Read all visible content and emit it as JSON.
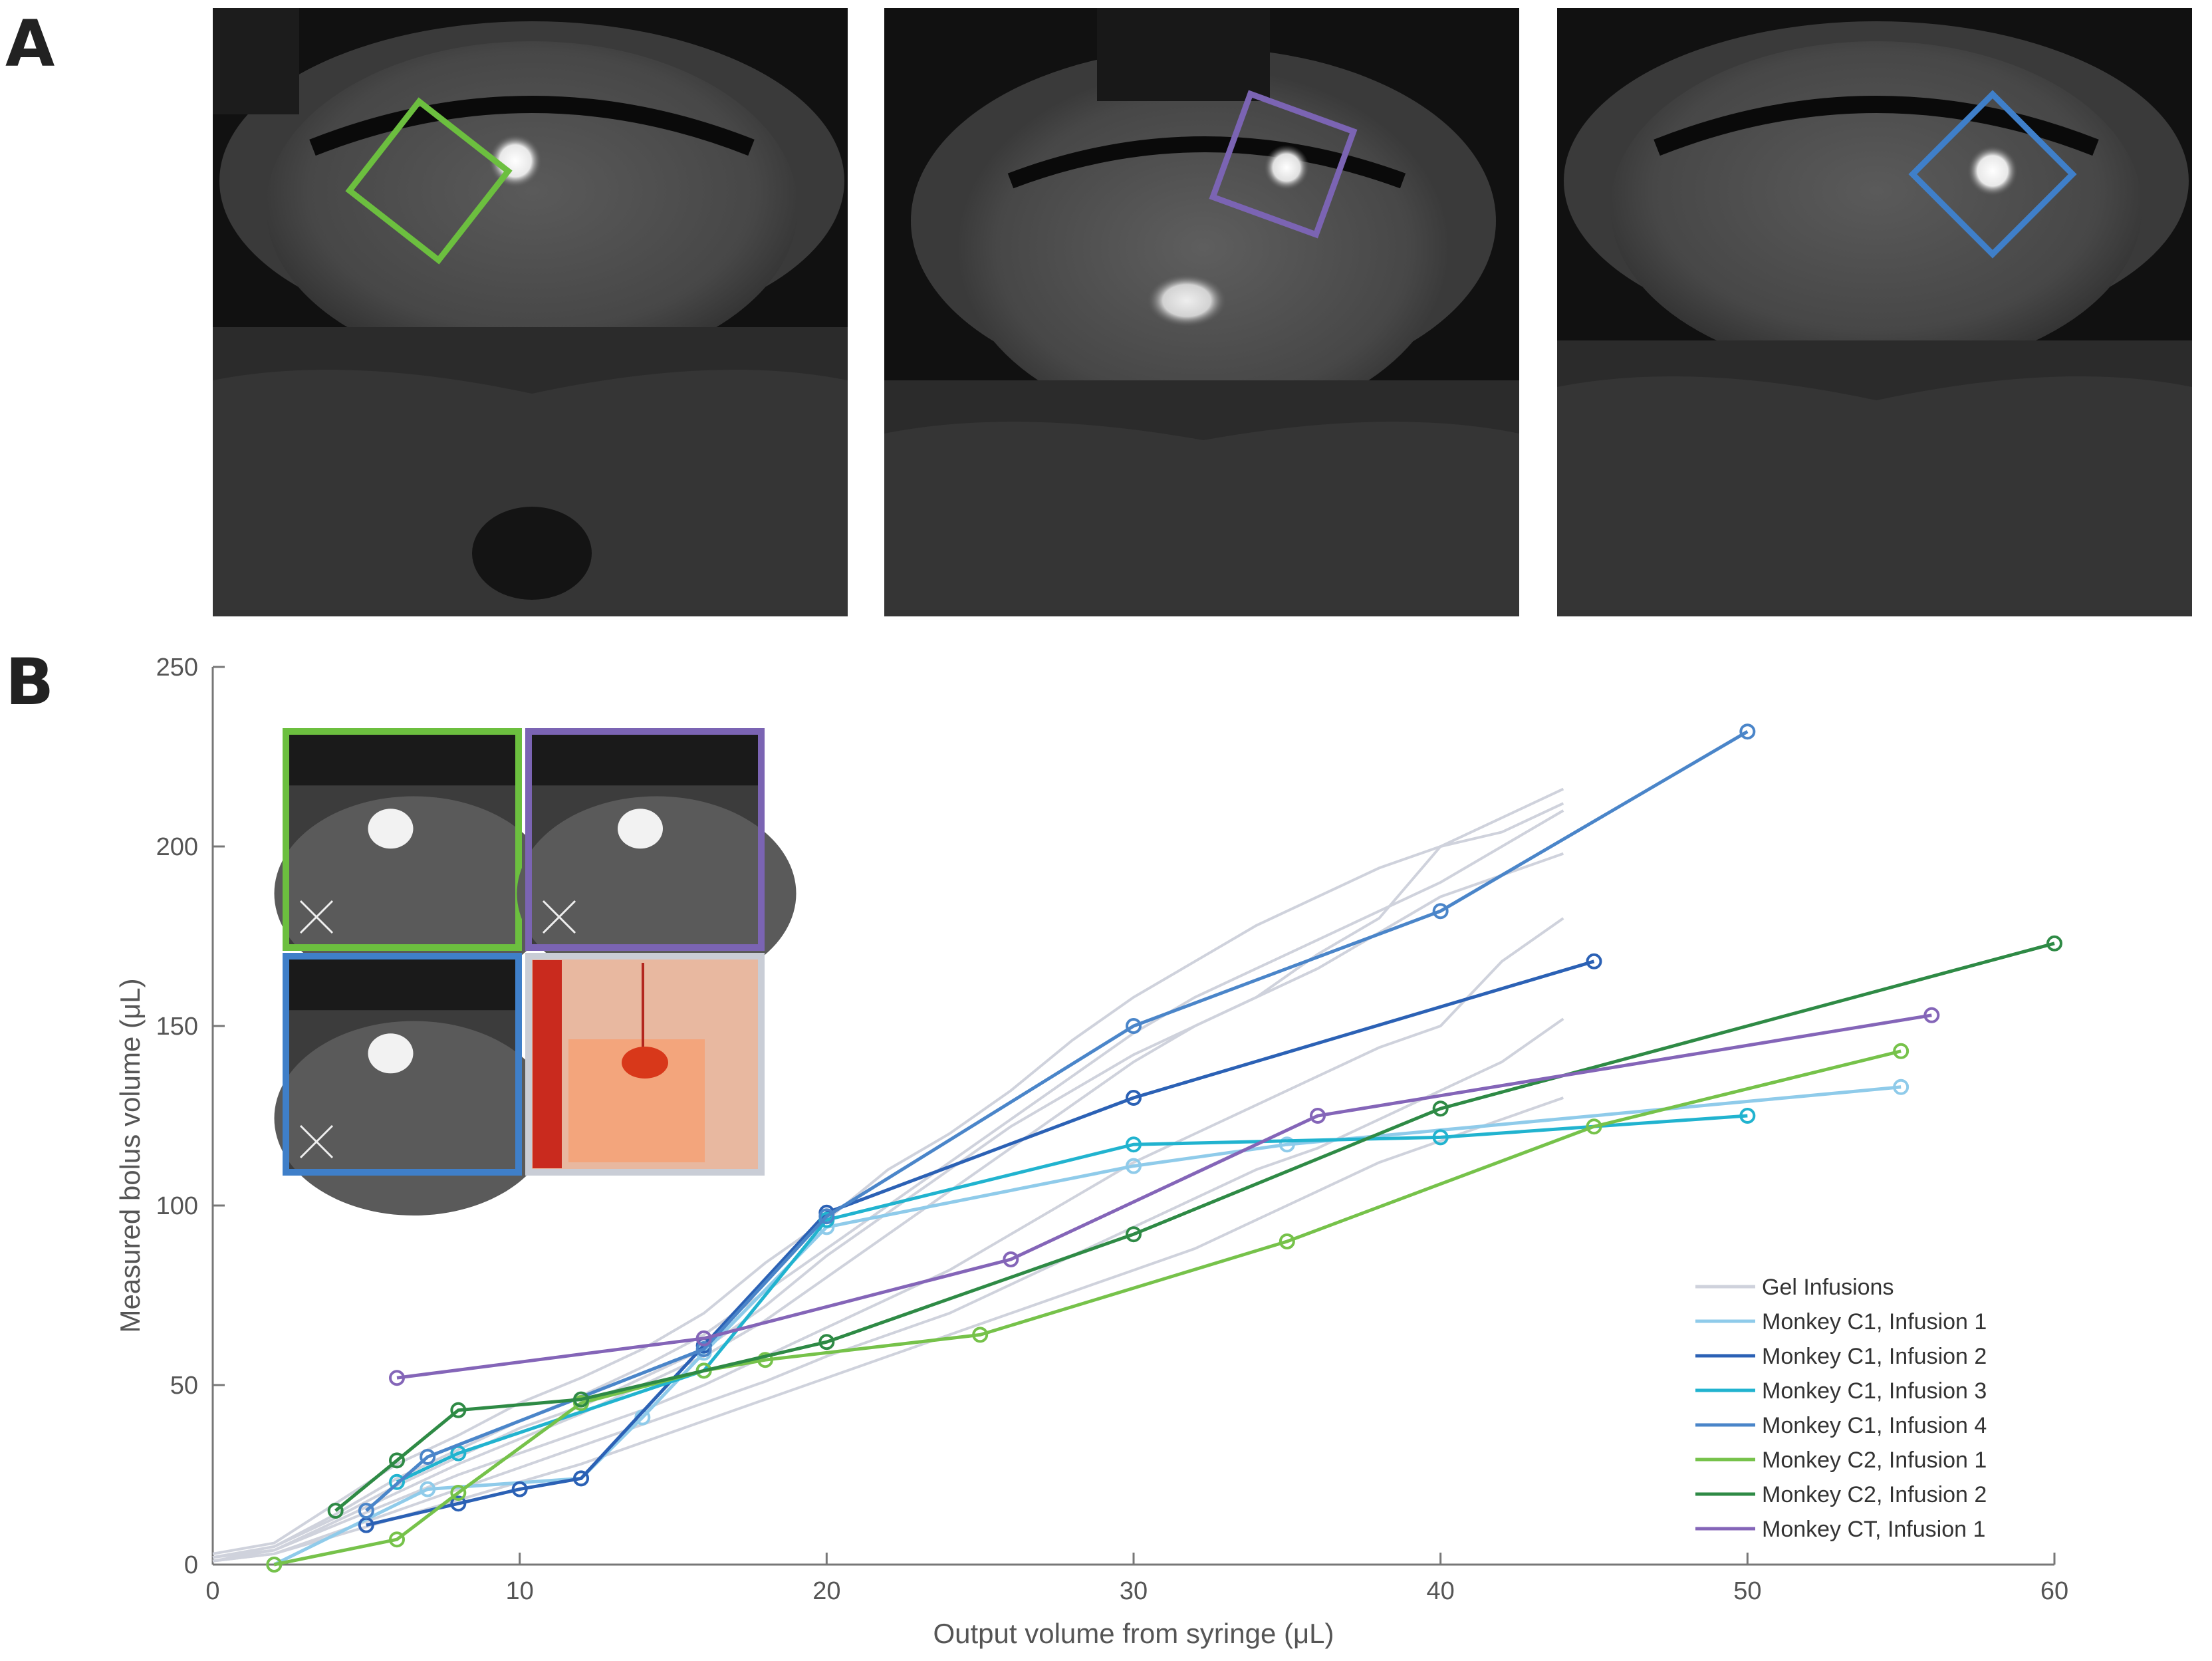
{
  "panels": {
    "a_label": "A",
    "b_label": "B"
  },
  "mri_panels": [
    {
      "box_color": "#6cbf3f"
    },
    {
      "box_color": "#7b64b3"
    },
    {
      "box_color": "#3f7fc9"
    }
  ],
  "inset_panels": [
    {
      "border_color": "#6cbf3f"
    },
    {
      "border_color": "#7b64b3"
    },
    {
      "border_color": "#3f7fc9"
    },
    {
      "border_color": "#c9cdd6"
    }
  ],
  "chart_data": {
    "type": "line",
    "xlabel": "Output volume from syringe (μL)",
    "ylabel": "Measured bolus volume (μL)",
    "xlim": [
      0,
      60
    ],
    "ylim": [
      0,
      250
    ],
    "xticks": [
      0,
      10,
      20,
      30,
      40,
      50,
      60
    ],
    "yticks": [
      0,
      50,
      100,
      150,
      200,
      250
    ],
    "grid": false,
    "legend_position": "bottom-right",
    "gel_infusions": {
      "name": "Gel Infusions",
      "color": "#cfd2dc",
      "traces": [
        [
          [
            0,
            3
          ],
          [
            2,
            6
          ],
          [
            4,
            17
          ],
          [
            6,
            28
          ],
          [
            8,
            36
          ],
          [
            10,
            45
          ],
          [
            12,
            52
          ],
          [
            14,
            60
          ],
          [
            16,
            70
          ],
          [
            18,
            84
          ],
          [
            20,
            96
          ],
          [
            22,
            110
          ],
          [
            24,
            120
          ],
          [
            26,
            132
          ],
          [
            28,
            146
          ],
          [
            30,
            158
          ],
          [
            32,
            168
          ],
          [
            34,
            178
          ],
          [
            36,
            186
          ],
          [
            38,
            194
          ],
          [
            40,
            200
          ],
          [
            42,
            208
          ],
          [
            44,
            216
          ]
        ],
        [
          [
            0,
            2
          ],
          [
            2,
            5
          ],
          [
            4,
            14
          ],
          [
            6,
            24
          ],
          [
            8,
            32
          ],
          [
            10,
            40
          ],
          [
            12,
            47
          ],
          [
            14,
            55
          ],
          [
            16,
            64
          ],
          [
            18,
            76
          ],
          [
            20,
            88
          ],
          [
            22,
            100
          ],
          [
            24,
            112
          ],
          [
            26,
            124
          ],
          [
            28,
            136
          ],
          [
            30,
            148
          ],
          [
            32,
            158
          ],
          [
            34,
            166
          ],
          [
            36,
            174
          ],
          [
            38,
            182
          ],
          [
            40,
            190
          ],
          [
            42,
            200
          ],
          [
            44,
            210
          ]
        ],
        [
          [
            0,
            1
          ],
          [
            2,
            4
          ],
          [
            4,
            12
          ],
          [
            6,
            20
          ],
          [
            8,
            28
          ],
          [
            10,
            35
          ],
          [
            12,
            42
          ],
          [
            14,
            50
          ],
          [
            16,
            58
          ],
          [
            18,
            68
          ],
          [
            20,
            80
          ],
          [
            22,
            92
          ],
          [
            24,
            104
          ],
          [
            26,
            116
          ],
          [
            28,
            128
          ],
          [
            30,
            140
          ],
          [
            32,
            150
          ],
          [
            34,
            158
          ],
          [
            36,
            166
          ],
          [
            38,
            176
          ],
          [
            40,
            186
          ],
          [
            42,
            192
          ],
          [
            44,
            198
          ]
        ],
        [
          [
            0,
            2
          ],
          [
            2,
            4
          ],
          [
            4,
            11
          ],
          [
            6,
            18
          ],
          [
            8,
            25
          ],
          [
            10,
            31
          ],
          [
            12,
            37
          ],
          [
            14,
            43
          ],
          [
            16,
            50
          ],
          [
            18,
            58
          ],
          [
            20,
            66
          ],
          [
            22,
            74
          ],
          [
            24,
            82
          ],
          [
            26,
            92
          ],
          [
            28,
            102
          ],
          [
            30,
            112
          ],
          [
            32,
            120
          ],
          [
            34,
            128
          ],
          [
            36,
            136
          ],
          [
            38,
            144
          ],
          [
            40,
            150
          ],
          [
            42,
            168
          ],
          [
            44,
            180
          ]
        ],
        [
          [
            0,
            1
          ],
          [
            2,
            3
          ],
          [
            4,
            9
          ],
          [
            6,
            15
          ],
          [
            8,
            21
          ],
          [
            10,
            27
          ],
          [
            12,
            33
          ],
          [
            14,
            39
          ],
          [
            16,
            45
          ],
          [
            18,
            51
          ],
          [
            20,
            58
          ],
          [
            22,
            64
          ],
          [
            24,
            70
          ],
          [
            26,
            78
          ],
          [
            28,
            86
          ],
          [
            30,
            94
          ],
          [
            32,
            102
          ],
          [
            34,
            110
          ],
          [
            36,
            116
          ],
          [
            38,
            124
          ],
          [
            40,
            132
          ],
          [
            42,
            140
          ],
          [
            44,
            152
          ]
        ],
        [
          [
            0,
            1
          ],
          [
            2,
            3
          ],
          [
            4,
            8
          ],
          [
            6,
            13
          ],
          [
            8,
            18
          ],
          [
            10,
            23
          ],
          [
            12,
            28
          ],
          [
            14,
            34
          ],
          [
            16,
            40
          ],
          [
            18,
            46
          ],
          [
            20,
            52
          ],
          [
            22,
            58
          ],
          [
            24,
            64
          ],
          [
            26,
            70
          ],
          [
            28,
            76
          ],
          [
            30,
            82
          ],
          [
            32,
            88
          ],
          [
            34,
            96
          ],
          [
            36,
            104
          ],
          [
            38,
            112
          ],
          [
            40,
            118
          ],
          [
            42,
            124
          ],
          [
            44,
            130
          ]
        ],
        [
          [
            0,
            2
          ],
          [
            2,
            5
          ],
          [
            4,
            13
          ],
          [
            6,
            22
          ],
          [
            8,
            30
          ],
          [
            10,
            38
          ],
          [
            12,
            44
          ],
          [
            14,
            52
          ],
          [
            16,
            60
          ],
          [
            18,
            72
          ],
          [
            20,
            86
          ],
          [
            22,
            98
          ],
          [
            24,
            110
          ],
          [
            26,
            122
          ],
          [
            28,
            132
          ],
          [
            30,
            142
          ],
          [
            32,
            150
          ],
          [
            34,
            158
          ],
          [
            36,
            170
          ],
          [
            38,
            180
          ],
          [
            40,
            200
          ],
          [
            42,
            204
          ],
          [
            44,
            212
          ]
        ]
      ]
    },
    "series": [
      {
        "name": "Monkey C1, Infusion 1",
        "color": "#8fcbea",
        "x": [
          2,
          7,
          12,
          14,
          16,
          20,
          30,
          35,
          55
        ],
        "y": [
          0,
          21,
          24,
          41,
          59,
          94,
          111,
          117,
          133
        ]
      },
      {
        "name": "Monkey C1, Infusion 2",
        "color": "#2b61b5",
        "x": [
          5,
          8,
          10,
          12,
          16,
          20,
          30,
          45
        ],
        "y": [
          11,
          17,
          21,
          24,
          61,
          98,
          130,
          168
        ]
      },
      {
        "name": "Monkey C1, Infusion 3",
        "color": "#21b3cf",
        "x": [
          6,
          8,
          16,
          20,
          30,
          40,
          50
        ],
        "y": [
          23,
          31,
          54,
          96,
          117,
          119,
          125
        ]
      },
      {
        "name": "Monkey C1, Infusion 4",
        "color": "#4a85c9",
        "x": [
          5,
          7,
          16,
          20,
          30,
          40,
          50
        ],
        "y": [
          15,
          30,
          60,
          97,
          150,
          182,
          232
        ]
      },
      {
        "name": "Monkey C2, Infusion 1",
        "color": "#76c24a",
        "x": [
          2,
          6,
          8,
          12,
          16,
          18,
          25,
          35,
          45,
          55
        ],
        "y": [
          0,
          7,
          20,
          45,
          54,
          57,
          64,
          90,
          122,
          143
        ]
      },
      {
        "name": "Monkey C2, Infusion 2",
        "color": "#2e8a45",
        "x": [
          4,
          6,
          8,
          12,
          20,
          30,
          40,
          60
        ],
        "y": [
          15,
          29,
          43,
          46,
          62,
          92,
          127,
          173
        ]
      },
      {
        "name": "Monkey CT, Infusion 1",
        "color": "#8465b8",
        "x": [
          6,
          16,
          26,
          36,
          56
        ],
        "y": [
          52,
          63,
          85,
          125,
          153
        ]
      }
    ]
  }
}
